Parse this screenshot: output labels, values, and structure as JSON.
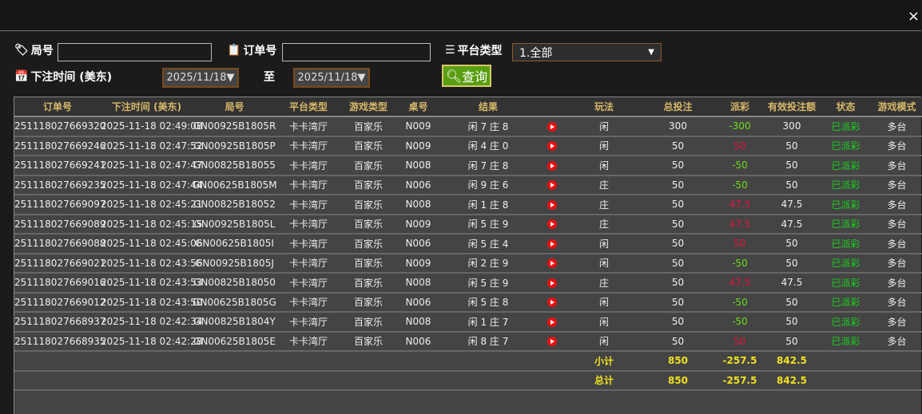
{
  "filters": {
    "round_label": "局号",
    "round_value": "",
    "order_label": "订单号",
    "order_value": "",
    "platform_label": "平台类型",
    "platform_value": "1.全部",
    "time_label": "下注时间 (美东)",
    "date_from": "2025/11/18▼",
    "to_label": "至",
    "date_to": "2025/11/18▼",
    "query_label": "查询"
  },
  "close_label": "×",
  "columns": [
    "订单号",
    "下注时间 (美东)",
    "局号",
    "平台类型",
    "游戏类型",
    "桌号",
    "结果",
    "",
    "玩法",
    "总投注",
    "派彩",
    "有效投注额",
    "状态",
    "游戏模式"
  ],
  "rows": [
    [
      "251118027669320",
      "2025-11-18 02:49:08",
      "GN00925B1805R",
      "卡卡湾厅",
      "百家乐",
      "N009",
      "闲 7 庄 8",
      "闲",
      "300",
      "-300",
      "300",
      "已派彩",
      "多台"
    ],
    [
      "251118027669246",
      "2025-11-18 02:47:52",
      "GN00925B1805P",
      "卡卡湾厅",
      "百家乐",
      "N009",
      "闲 4 庄 0",
      "闲",
      "50",
      "50",
      "50",
      "已派彩",
      "多台"
    ],
    [
      "251118027669241",
      "2025-11-18 02:47:47",
      "GN00825B18055",
      "卡卡湾厅",
      "百家乐",
      "N008",
      "闲 7 庄 8",
      "闲",
      "50",
      "-50",
      "50",
      "已派彩",
      "多台"
    ],
    [
      "251118027669235",
      "2025-11-18 02:47:44",
      "GN00625B1805M",
      "卡卡湾厅",
      "百家乐",
      "N006",
      "闲 9 庄 6",
      "庄",
      "50",
      "-50",
      "50",
      "已派彩",
      "多台"
    ],
    [
      "251118027669097",
      "2025-11-18 02:45:21",
      "GN00825B18052",
      "卡卡湾厅",
      "百家乐",
      "N008",
      "闲 1 庄 8",
      "庄",
      "50",
      "47.5",
      "47.5",
      "已派彩",
      "多台"
    ],
    [
      "251118027669089",
      "2025-11-18 02:45:15",
      "GN00925B1805L",
      "卡卡湾厅",
      "百家乐",
      "N009",
      "闲 5 庄 9",
      "庄",
      "50",
      "47.5",
      "47.5",
      "已派彩",
      "多台"
    ],
    [
      "251118027669088",
      "2025-11-18 02:45:06",
      "GN00625B1805I",
      "卡卡湾厅",
      "百家乐",
      "N006",
      "闲 5 庄 4",
      "闲",
      "50",
      "50",
      "50",
      "已派彩",
      "多台"
    ],
    [
      "251118027669021",
      "2025-11-18 02:43:56",
      "GN00925B1805J",
      "卡卡湾厅",
      "百家乐",
      "N009",
      "闲 2 庄 9",
      "闲",
      "50",
      "-50",
      "50",
      "已派彩",
      "多台"
    ],
    [
      "251118027669016",
      "2025-11-18 02:43:53",
      "GN00825B18050",
      "卡卡湾厅",
      "百家乐",
      "N008",
      "闲 5 庄 9",
      "庄",
      "50",
      "47.5",
      "47.5",
      "已派彩",
      "多台"
    ],
    [
      "251118027669012",
      "2025-11-18 02:43:50",
      "GN00625B1805G",
      "卡卡湾厅",
      "百家乐",
      "N006",
      "闲 5 庄 8",
      "闲",
      "50",
      "-50",
      "50",
      "已派彩",
      "多台"
    ],
    [
      "251118027668937",
      "2025-11-18 02:42:34",
      "GN00825B1804Y",
      "卡卡湾厅",
      "百家乐",
      "N008",
      "闲 1 庄 7",
      "闲",
      "50",
      "-50",
      "50",
      "已派彩",
      "多台"
    ],
    [
      "251118027668935",
      "2025-11-18 02:42:28",
      "GN00625B1805E",
      "卡卡湾厅",
      "百家乐",
      "N006",
      "闲 8 庄 7",
      "闲",
      "50",
      "50",
      "50",
      "已派彩",
      "多台"
    ]
  ],
  "subtotal": {
    "label": "小计",
    "total_bet": "850",
    "payout": "-257.5",
    "valid_bet": "842.5"
  },
  "grandtotal": {
    "label": "总计",
    "total_bet": "850",
    "payout": "-257.5",
    "valid_bet": "842.5"
  },
  "colors": {
    "win": "#e0143c",
    "loss": "#6cdc1c",
    "status": "#19d41c",
    "header": "#d8b86a",
    "total": "#f0e020"
  }
}
